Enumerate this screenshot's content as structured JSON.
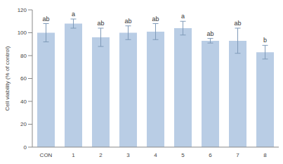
{
  "chart_data": {
    "type": "bar",
    "y_label": "Cell viability (% of control)",
    "categories": [
      "CON",
      "1",
      "2",
      "3",
      "4",
      "5",
      "6",
      "7",
      "8"
    ],
    "values": [
      100,
      108,
      96,
      100,
      101,
      104,
      93,
      93,
      83
    ],
    "errors": [
      8,
      4,
      8,
      6,
      7,
      6,
      2,
      11,
      6
    ],
    "annotations": [
      "ab",
      "a",
      "ab",
      "ab",
      "ab",
      "a",
      "ab",
      "ab",
      "b"
    ],
    "color": "#b9cde5",
    "ylim": [
      0,
      120
    ],
    "yticks": [
      0,
      20,
      40,
      60,
      80,
      100,
      120
    ],
    "grid": false
  }
}
